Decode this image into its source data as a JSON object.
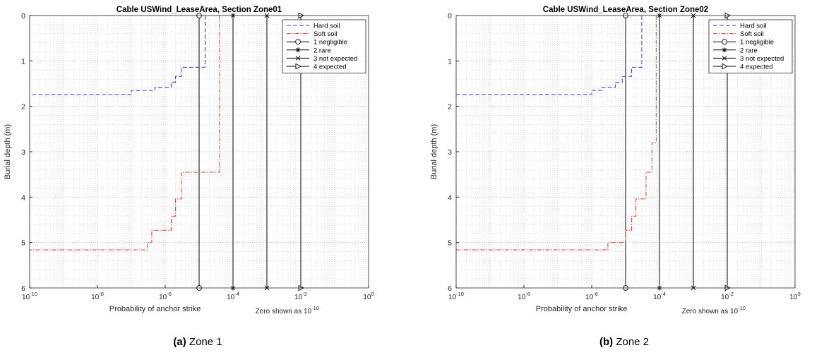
{
  "colors": {
    "hard_soil": "#3b3bd9",
    "soft_soil": "#e03a3a",
    "category_line": "#000000",
    "grid": "#cfcfcf"
  },
  "chart_data": [
    {
      "type": "line",
      "title": "Cable USWind_LeaseArea, Section Zone01",
      "xlabel": "Probability of anchor strike",
      "ylabel": "Burial depth (m)",
      "x_scale": "log",
      "xlim": [
        1e-10,
        1
      ],
      "ylim": [
        0,
        6
      ],
      "y_reversed": true,
      "x_ticks": [
        {
          "base": "10",
          "exp": "-10"
        },
        {
          "base": "10",
          "exp": "-8"
        },
        {
          "base": "10",
          "exp": "-6"
        },
        {
          "base": "10",
          "exp": "-4"
        },
        {
          "base": "10",
          "exp": "-2"
        },
        {
          "base": "10",
          "exp": "0"
        }
      ],
      "y_ticks": [
        "0",
        "1",
        "2",
        "3",
        "4",
        "5",
        "6"
      ],
      "note": {
        "text": "Zero shown as 10",
        "exp": "-10"
      },
      "grid": true,
      "legend_position": "top-right",
      "caption": {
        "letter": "(a)",
        "text": "Zone 1"
      },
      "series": [
        {
          "name": "Hard soil",
          "style": "dashed",
          "color": "#3b3bd9",
          "points": [
            [
              1.5e-05,
              0
            ],
            [
              1.5e-05,
              1.14
            ],
            [
              3e-06,
              1.14
            ],
            [
              3e-06,
              1.34
            ],
            [
              2e-06,
              1.34
            ],
            [
              2e-06,
              1.47
            ],
            [
              1.5e-06,
              1.47
            ],
            [
              1.5e-06,
              1.58
            ],
            [
              5e-07,
              1.58
            ],
            [
              5e-07,
              1.65
            ],
            [
              1e-07,
              1.65
            ],
            [
              1e-07,
              1.74
            ],
            [
              1e-10,
              1.74
            ]
          ]
        },
        {
          "name": "Soft soil",
          "style": "dash-dot",
          "color": "#e03a3a",
          "points": [
            [
              4e-05,
              0
            ],
            [
              4e-05,
              3.45
            ],
            [
              3e-06,
              3.45
            ],
            [
              3e-06,
              4.04
            ],
            [
              2e-06,
              4.04
            ],
            [
              2e-06,
              4.42
            ],
            [
              1.5e-06,
              4.42
            ],
            [
              1.5e-06,
              4.73
            ],
            [
              4e-07,
              4.73
            ],
            [
              4e-07,
              5.0
            ],
            [
              3e-07,
              5.0
            ],
            [
              3e-07,
              5.16
            ],
            [
              1e-10,
              5.16
            ]
          ]
        }
      ],
      "categories": [
        {
          "name": "1 negligible",
          "x": 1e-05,
          "marker": "circle"
        },
        {
          "name": "2 rare",
          "x": 0.0001,
          "marker": "asterisk"
        },
        {
          "name": "3 not expected",
          "x": 0.001,
          "marker": "x"
        },
        {
          "name": "4 expected",
          "x": 0.01,
          "marker": "triangle-right"
        }
      ]
    },
    {
      "type": "line",
      "title": "Cable USWind_LeaseArea, Section Zone02",
      "xlabel": "Probability of anchor strike",
      "ylabel": "Burial depth (m)",
      "x_scale": "log",
      "xlim": [
        1e-10,
        1
      ],
      "ylim": [
        0,
        6
      ],
      "y_reversed": true,
      "x_ticks": [
        {
          "base": "10",
          "exp": "-10"
        },
        {
          "base": "10",
          "exp": "-8"
        },
        {
          "base": "10",
          "exp": "-6"
        },
        {
          "base": "10",
          "exp": "-4"
        },
        {
          "base": "10",
          "exp": "-2"
        },
        {
          "base": "10",
          "exp": "0"
        }
      ],
      "y_ticks": [
        "0",
        "1",
        "2",
        "3",
        "4",
        "5",
        "6"
      ],
      "note": {
        "text": "Zero shown as 10",
        "exp": "-10"
      },
      "grid": true,
      "legend_position": "top-right",
      "caption": {
        "letter": "(b)",
        "text": "Zone 2"
      },
      "series": [
        {
          "name": "Hard soil",
          "style": "dashed",
          "color": "#3b3bd9",
          "points": [
            [
              3e-05,
              0
            ],
            [
              3e-05,
              1.14
            ],
            [
              1.5e-05,
              1.14
            ],
            [
              1.5e-05,
              1.34
            ],
            [
              8e-06,
              1.34
            ],
            [
              8e-06,
              1.47
            ],
            [
              5e-06,
              1.47
            ],
            [
              5e-06,
              1.58
            ],
            [
              2e-06,
              1.58
            ],
            [
              2e-06,
              1.65
            ],
            [
              1e-06,
              1.65
            ],
            [
              1e-06,
              1.74
            ],
            [
              1e-10,
              1.74
            ]
          ]
        },
        {
          "name": "Soft soil",
          "style": "dash-dot",
          "color": "#e03a3a",
          "points": [
            [
              8e-05,
              0
            ],
            [
              8e-05,
              2.8
            ],
            [
              6e-05,
              2.8
            ],
            [
              6e-05,
              3.45
            ],
            [
              4e-05,
              3.45
            ],
            [
              4e-05,
              4.04
            ],
            [
              2e-05,
              4.04
            ],
            [
              2e-05,
              4.42
            ],
            [
              1.5e-05,
              4.42
            ],
            [
              1.5e-05,
              4.73
            ],
            [
              1e-05,
              4.73
            ],
            [
              1e-05,
              5.0
            ],
            [
              3e-06,
              5.0
            ],
            [
              3e-06,
              5.16
            ],
            [
              1e-10,
              5.16
            ]
          ]
        }
      ],
      "categories": [
        {
          "name": "1 negligible",
          "x": 1e-05,
          "marker": "circle"
        },
        {
          "name": "2 rare",
          "x": 0.0001,
          "marker": "asterisk"
        },
        {
          "name": "3 not expected",
          "x": 0.001,
          "marker": "x"
        },
        {
          "name": "4 expected",
          "x": 0.01,
          "marker": "triangle-right"
        }
      ]
    }
  ]
}
